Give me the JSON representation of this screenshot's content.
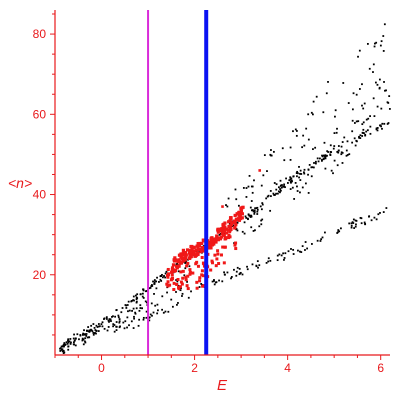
{
  "chart_data": {
    "type": "scatter",
    "title": "",
    "xlabel": "E",
    "ylabel": "<n>",
    "xlim": [
      -1.0,
      6.2
    ],
    "ylim": [
      0,
      86
    ],
    "x_ticks": [
      0,
      2,
      4,
      6
    ],
    "y_ticks": [
      20,
      40,
      60,
      80
    ],
    "x_tick_labels": [
      "0",
      "2",
      "4",
      "6"
    ],
    "y_tick_labels": [
      "20",
      "40",
      "60",
      "80"
    ],
    "grid": false,
    "legend": "none",
    "colors": {
      "axis": "#e8191c",
      "black_points": "#000000",
      "red_points": "#f01818",
      "magenta_line": "#d92bd9",
      "blue_line": "#0b12f2"
    },
    "vertical_lines": [
      {
        "x": 1.0,
        "color": "magenta"
      },
      {
        "x": 2.25,
        "color": "blue"
      }
    ],
    "series": [
      {
        "color": "black",
        "description_points": "main diagonal band of points",
        "upper_line": [
          [
            -0.9,
            2
          ],
          [
            -0.5,
            5
          ],
          [
            0,
            8
          ],
          [
            0.5,
            12
          ],
          [
            1,
            17
          ],
          [
            1.5,
            21
          ],
          [
            2,
            25
          ],
          [
            2.5,
            29
          ],
          [
            3,
            33
          ],
          [
            3.5,
            38
          ],
          [
            4,
            43
          ],
          [
            4.5,
            47
          ],
          [
            5,
            51
          ],
          [
            5.5,
            54
          ],
          [
            6,
            57
          ],
          [
            6.2,
            58
          ]
        ],
        "lower_line": [
          [
            -0.9,
            1
          ],
          [
            -0.5,
            3
          ],
          [
            0,
            6
          ],
          [
            0.5,
            7
          ],
          [
            1,
            9
          ],
          [
            1.5,
            12
          ],
          [
            2,
            16
          ],
          [
            2.5,
            19
          ],
          [
            3,
            21
          ],
          [
            3.5,
            23
          ],
          [
            4,
            25
          ],
          [
            4.5,
            28
          ],
          [
            5,
            31
          ],
          [
            5.5,
            33
          ],
          [
            6,
            35
          ],
          [
            6.2,
            36
          ]
        ],
        "upper_envelope": [
          [
            2.5,
            38
          ],
          [
            3,
            43
          ],
          [
            3.5,
            50
          ],
          [
            4,
            56
          ],
          [
            4.5,
            64
          ],
          [
            5,
            70
          ],
          [
            5.5,
            76
          ],
          [
            6,
            82
          ],
          [
            6.2,
            85
          ]
        ],
        "middle_band": [
          [
            2.8,
            30
          ],
          [
            3.2,
            34
          ],
          [
            3.6,
            38
          ],
          [
            4,
            41
          ],
          [
            4.4,
            44
          ],
          [
            4.8,
            47
          ],
          [
            5.2,
            52
          ],
          [
            5.6,
            58
          ],
          [
            6,
            64
          ]
        ]
      },
      {
        "color": "red",
        "description_points": "cluster of red points",
        "center_line": [
          [
            1.5,
            22
          ],
          [
            1.8,
            25
          ],
          [
            2,
            26
          ],
          [
            2.3,
            28
          ],
          [
            2.6,
            31
          ],
          [
            2.9,
            34
          ],
          [
            3.05,
            36
          ]
        ],
        "spread_region": [
          [
            1.4,
            17
          ],
          [
            1.7,
            14
          ],
          [
            2,
            15
          ],
          [
            2.3,
            18
          ],
          [
            2.6,
            22
          ],
          [
            2.9,
            26
          ]
        ]
      }
    ]
  }
}
